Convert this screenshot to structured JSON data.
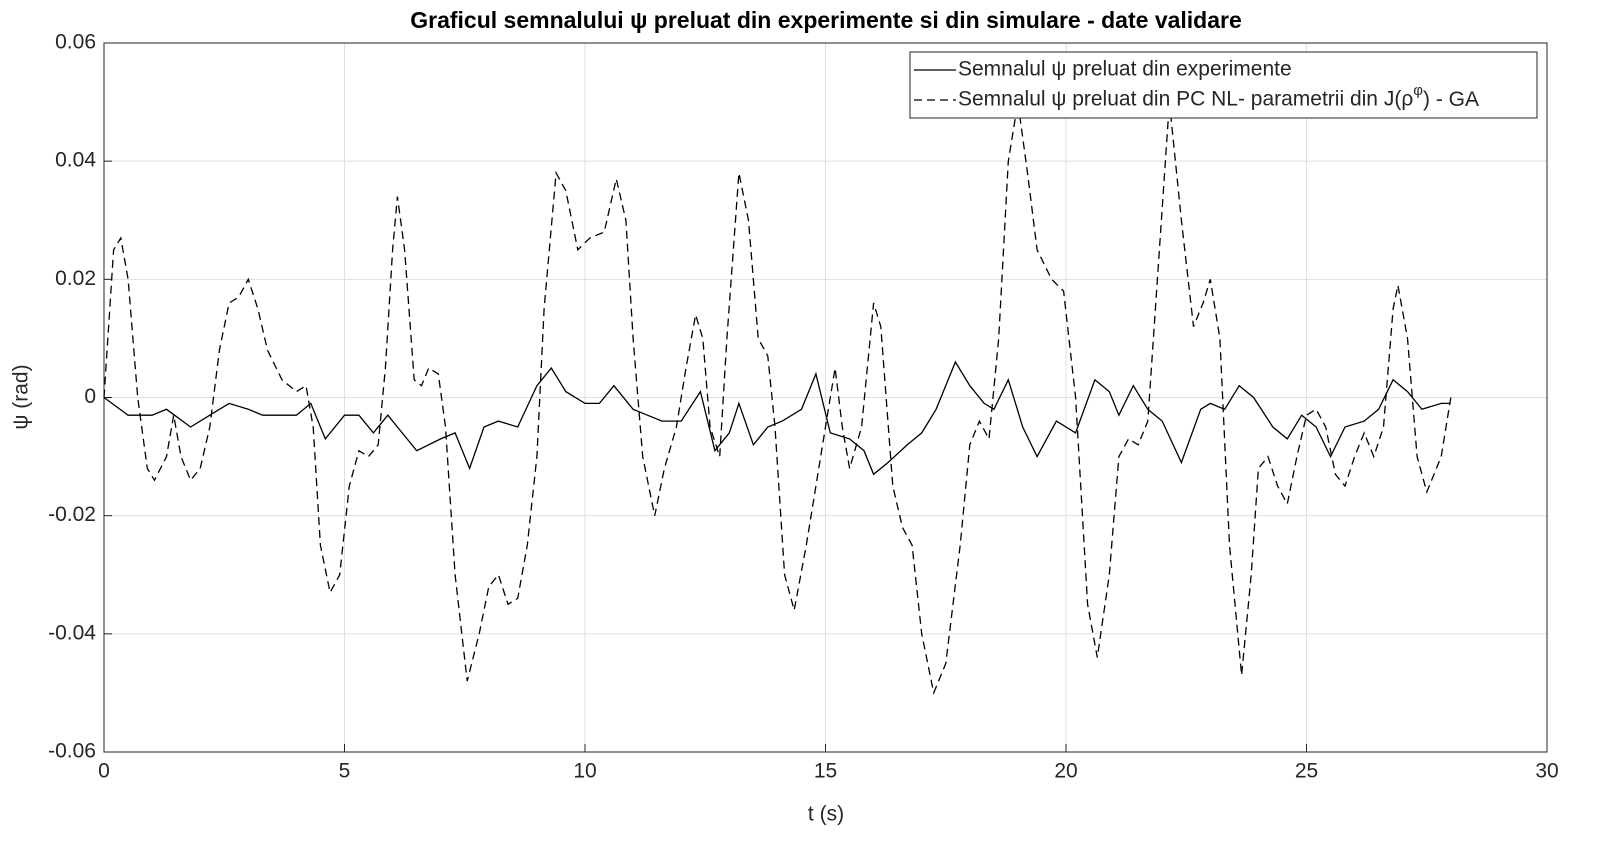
{
  "chart_data": {
    "type": "line",
    "title": "Graficul semnalului ψ preluat din experimente si din simulare - date validare",
    "xlabel": "t (s)",
    "ylabel": "ψ (rad)",
    "xlim": [
      0,
      30
    ],
    "xticks": [
      0,
      5,
      10,
      15,
      20,
      25,
      30
    ],
    "ylim": [
      -0.06,
      0.06
    ],
    "yticks": [
      -0.06,
      -0.04,
      -0.02,
      0,
      0.02,
      0.04,
      0.06
    ],
    "grid": true,
    "legend": "top-right",
    "series": [
      {
        "name": "Semnalul ψ preluat din experimente",
        "color": "#000000",
        "dash": "solid",
        "x": [
          0,
          0.5,
          1.0,
          1.3,
          1.8,
          2.2,
          2.6,
          3.0,
          3.3,
          3.7,
          4.0,
          4.3,
          4.6,
          5.0,
          5.3,
          5.6,
          5.9,
          6.2,
          6.5,
          7.0,
          7.3,
          7.6,
          7.9,
          8.2,
          8.6,
          9.0,
          9.3,
          9.6,
          10.0,
          10.3,
          10.6,
          11.0,
          11.3,
          11.6,
          12.0,
          12.4,
          12.7,
          13.0,
          13.2,
          13.5,
          13.8,
          14.1,
          14.5,
          14.8,
          15.1,
          15.5,
          15.8,
          16.0,
          16.3,
          16.7,
          17.0,
          17.3,
          17.7,
          18.0,
          18.3,
          18.5,
          18.8,
          19.1,
          19.4,
          19.8,
          20.2,
          20.6,
          20.9,
          21.1,
          21.4,
          21.7,
          22.0,
          22.4,
          22.8,
          23.0,
          23.3,
          23.6,
          23.9,
          24.3,
          24.6,
          24.9,
          25.2,
          25.5,
          25.8,
          26.2,
          26.5,
          26.8,
          27.1,
          27.4,
          27.8,
          28.0
        ],
        "values": [
          0,
          -0.003,
          -0.003,
          -0.002,
          -0.005,
          -0.003,
          -0.001,
          -0.002,
          -0.003,
          -0.003,
          -0.003,
          -0.001,
          -0.007,
          -0.003,
          -0.003,
          -0.006,
          -0.003,
          -0.006,
          -0.009,
          -0.007,
          -0.006,
          -0.012,
          -0.005,
          -0.004,
          -0.005,
          0.002,
          0.005,
          0.001,
          -0.001,
          -0.001,
          0.002,
          -0.002,
          -0.003,
          -0.004,
          -0.004,
          0.001,
          -0.009,
          -0.006,
          -0.001,
          -0.008,
          -0.005,
          -0.004,
          -0.002,
          0.004,
          -0.006,
          -0.007,
          -0.009,
          -0.013,
          -0.011,
          -0.008,
          -0.006,
          -0.002,
          0.006,
          0.002,
          -0.001,
          -0.002,
          0.003,
          -0.005,
          -0.01,
          -0.004,
          -0.006,
          0.003,
          0.001,
          -0.003,
          0.002,
          -0.002,
          -0.004,
          -0.011,
          -0.002,
          -0.001,
          -0.002,
          0.002,
          0,
          -0.005,
          -0.007,
          -0.003,
          -0.005,
          -0.01,
          -0.005,
          -0.004,
          -0.002,
          0.003,
          0.001,
          -0.002,
          -0.001,
          -0.001
        ]
      },
      {
        "name": "Semnalul ψ preluat din PC NL- parametrii din J(ρ^φ) - GA",
        "color": "#000000",
        "dash": "dashed",
        "x": [
          0,
          0.2,
          0.35,
          0.5,
          0.7,
          0.9,
          1.05,
          1.3,
          1.45,
          1.6,
          1.8,
          2.0,
          2.2,
          2.4,
          2.6,
          2.8,
          3.0,
          3.2,
          3.4,
          3.7,
          4.0,
          4.2,
          4.35,
          4.5,
          4.7,
          4.9,
          5.1,
          5.3,
          5.5,
          5.7,
          5.85,
          6.0,
          6.1,
          6.25,
          6.45,
          6.6,
          6.75,
          6.95,
          7.1,
          7.3,
          7.55,
          7.8,
          8.0,
          8.2,
          8.4,
          8.6,
          8.8,
          9.0,
          9.15,
          9.4,
          9.6,
          9.85,
          10.1,
          10.4,
          10.65,
          10.85,
          11.0,
          11.2,
          11.45,
          11.65,
          11.9,
          12.1,
          12.3,
          12.45,
          12.6,
          12.8,
          12.95,
          13.2,
          13.4,
          13.6,
          13.8,
          13.95,
          14.15,
          14.35,
          14.6,
          14.8,
          15.0,
          15.2,
          15.35,
          15.5,
          15.75,
          16.0,
          16.15,
          16.4,
          16.6,
          16.8,
          17.0,
          17.25,
          17.5,
          17.8,
          18.0,
          18.2,
          18.4,
          18.6,
          18.8,
          19.0,
          19.2,
          19.4,
          19.7,
          19.95,
          20.2,
          20.45,
          20.65,
          20.9,
          21.1,
          21.3,
          21.5,
          21.7,
          21.9,
          22.15,
          22.4,
          22.65,
          22.85,
          23.0,
          23.2,
          23.4,
          23.65,
          23.85,
          24.0,
          24.2,
          24.4,
          24.6,
          24.8,
          25.0,
          25.2,
          25.4,
          25.6,
          25.8,
          26.0,
          26.2,
          26.4,
          26.6,
          26.8,
          26.9,
          27.1,
          27.3,
          27.5,
          27.8,
          28.0
        ],
        "values": [
          0,
          0.025,
          0.027,
          0.02,
          0,
          -0.012,
          -0.014,
          -0.01,
          -0.003,
          -0.01,
          -0.014,
          -0.012,
          -0.005,
          0.008,
          0.016,
          0.017,
          0.02,
          0.015,
          0.008,
          0.003,
          0.001,
          0.002,
          -0.005,
          -0.025,
          -0.033,
          -0.03,
          -0.015,
          -0.009,
          -0.01,
          -0.008,
          0.005,
          0.025,
          0.034,
          0.025,
          0.003,
          0.002,
          0.005,
          0.004,
          -0.005,
          -0.03,
          -0.048,
          -0.04,
          -0.032,
          -0.03,
          -0.035,
          -0.034,
          -0.025,
          -0.01,
          0.015,
          0.038,
          0.035,
          0.025,
          0.027,
          0.028,
          0.037,
          0.03,
          0.01,
          -0.01,
          -0.02,
          -0.012,
          -0.005,
          0.005,
          0.014,
          0.01,
          -0.005,
          -0.01,
          0.01,
          0.038,
          0.03,
          0.01,
          0.007,
          -0.005,
          -0.03,
          -0.036,
          -0.025,
          -0.015,
          -0.005,
          0.005,
          -0.005,
          -0.012,
          -0.005,
          0.016,
          0.012,
          -0.015,
          -0.022,
          -0.025,
          -0.04,
          -0.05,
          -0.045,
          -0.025,
          -0.008,
          -0.004,
          -0.007,
          0.01,
          0.04,
          0.05,
          0.038,
          0.025,
          0.02,
          0.018,
          0,
          -0.035,
          -0.044,
          -0.03,
          -0.01,
          -0.007,
          -0.008,
          -0.004,
          0.02,
          0.05,
          0.03,
          0.012,
          0.016,
          0.02,
          0.01,
          -0.025,
          -0.047,
          -0.03,
          -0.012,
          -0.01,
          -0.015,
          -0.018,
          -0.01,
          -0.003,
          -0.002,
          -0.005,
          -0.013,
          -0.015,
          -0.01,
          -0.006,
          -0.01,
          -0.005,
          0.015,
          0.019,
          0.01,
          -0.01,
          -0.016,
          -0.01,
          0
        ]
      }
    ]
  }
}
